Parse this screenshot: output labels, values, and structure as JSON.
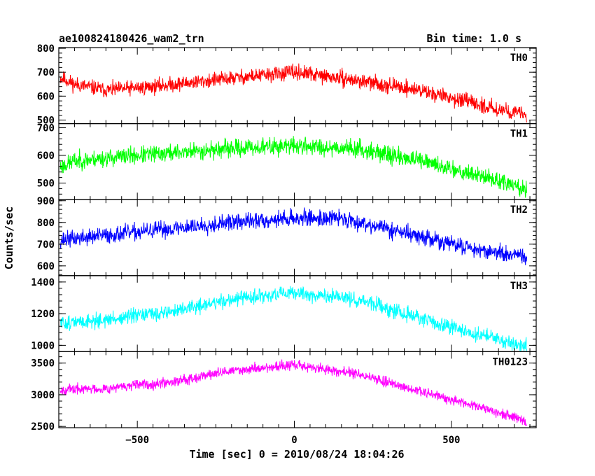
{
  "chart_data": {
    "type": "line",
    "title": "ae100824180426_wam2_trn",
    "subtitle": "Bin time: 1.0 s",
    "xlabel": "Time [sec] 0 = 2010/08/24 18:04:26",
    "ylabel": "Counts/sec",
    "xlim": [
      -750,
      770
    ],
    "x_ticks": [
      -500,
      0,
      500
    ],
    "x_tick_labels": [
      "−500",
      "0",
      "500"
    ],
    "grid": false,
    "x_range_data": [
      -745,
      740
    ],
    "panels": [
      {
        "name": "TH0",
        "color": "#ff0000",
        "ylim": [
          485,
          803
        ],
        "y_ticks": [
          500,
          600,
          700,
          800
        ],
        "y_tick_labels": [
          "500",
          "600",
          "700",
          "800"
        ],
        "trend": {
          "x": [
            -740,
            -700,
            -600,
            -450,
            -200,
            0,
            200,
            400,
            600,
            740
          ],
          "y": [
            675,
            650,
            625,
            640,
            675,
            700,
            665,
            625,
            560,
            520
          ]
        },
        "noise": 27,
        "seed": 11
      },
      {
        "name": "TH1",
        "color": "#00ff00",
        "ylim": [
          440,
          715
        ],
        "y_ticks": [
          500,
          600,
          700
        ],
        "y_tick_labels": [
          "500",
          "600",
          "700"
        ],
        "trend": {
          "x": [
            -740,
            -700,
            -500,
            -200,
            0,
            200,
            400,
            600,
            740
          ],
          "y": [
            560,
            580,
            600,
            625,
            635,
            625,
            580,
            525,
            475
          ]
        },
        "noise": 27,
        "seed": 23
      },
      {
        "name": "TH2",
        "color": "#0000ff",
        "ylim": [
          555,
          905
        ],
        "y_ticks": [
          600,
          700,
          800,
          900
        ],
        "y_tick_labels": [
          "600",
          "700",
          "800",
          "900"
        ],
        "trend": {
          "x": [
            -740,
            -600,
            -400,
            -200,
            0,
            150,
            300,
            500,
            740
          ],
          "y": [
            720,
            740,
            770,
            800,
            820,
            820,
            770,
            700,
            635
          ]
        },
        "noise": 33,
        "seed": 37
      },
      {
        "name": "TH3",
        "color": "#00ffff",
        "ylim": [
          960,
          1440
        ],
        "y_ticks": [
          1000,
          1200,
          1400
        ],
        "y_tick_labels": [
          "1000",
          "1200",
          "1400"
        ],
        "trend": {
          "x": [
            -740,
            -600,
            -400,
            -200,
            0,
            200,
            400,
            600,
            740
          ],
          "y": [
            1140,
            1160,
            1210,
            1290,
            1330,
            1290,
            1170,
            1060,
            990
          ]
        },
        "noise": 40,
        "seed": 51
      },
      {
        "name": "TH0123",
        "color": "#ff00ff",
        "ylim": [
          2480,
          3680
        ],
        "y_ticks": [
          2500,
          3000,
          3500
        ],
        "y_tick_labels": [
          "2500",
          "3000",
          "3500"
        ],
        "trend": {
          "x": [
            -740,
            -600,
            -400,
            -200,
            0,
            200,
            400,
            600,
            740
          ],
          "y": [
            3080,
            3100,
            3200,
            3380,
            3470,
            3330,
            3050,
            2800,
            2580
          ]
        },
        "noise": 70,
        "seed": 67
      }
    ]
  }
}
